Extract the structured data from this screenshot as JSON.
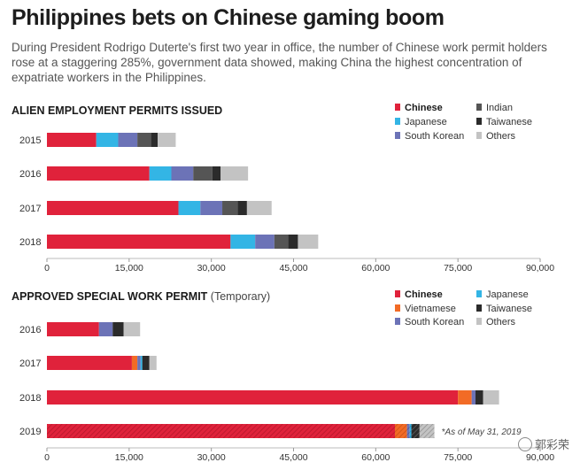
{
  "title": "Philippines bets on Chinese gaming boom",
  "subtitle": "During President Rodrigo Duterte's first two year in office, the number of Chinese work permit holders rose at a staggering 285%, government data showed, making China the highest concentration of expatriate workers in the Philippines.",
  "watermark": "郭彩荣",
  "colors": {
    "Chinese": "#e0223b",
    "Japanese": "#33b5e5",
    "South Korean": "#6c73b7",
    "Indian": "#555555",
    "Taiwanese": "#2b2b2b",
    "Others": "#c3c3c3",
    "Vietnamese": "#f26b26"
  },
  "chart_data": [
    {
      "type": "bar",
      "orientation": "horizontal",
      "stacked": true,
      "title": "ALIEN EMPLOYMENT PERMITS ISSUED",
      "subtitle": "",
      "categories": [
        "2015",
        "2016",
        "2017",
        "2018"
      ],
      "xlim": [
        0,
        90000
      ],
      "xticks": [
        "0",
        "15,000",
        "30,000",
        "45,000",
        "60,000",
        "75,000",
        "90,000"
      ],
      "xtick_values": [
        0,
        15000,
        30000,
        45000,
        60000,
        75000,
        90000
      ],
      "legend": [
        "Chinese",
        "Japanese",
        "South Korean",
        "Indian",
        "Taiwanese",
        "Others"
      ],
      "legend_bold": [
        "Chinese"
      ],
      "series": [
        {
          "name": "Chinese",
          "values": [
            9000,
            18700,
            24000,
            33500
          ]
        },
        {
          "name": "Japanese",
          "values": [
            4000,
            4000,
            4000,
            4500
          ]
        },
        {
          "name": "South Korean",
          "values": [
            3500,
            4000,
            4000,
            3500
          ]
        },
        {
          "name": "Indian",
          "values": [
            2500,
            3500,
            2800,
            2500
          ]
        },
        {
          "name": "Taiwanese",
          "values": [
            1200,
            1500,
            1700,
            1800
          ]
        },
        {
          "name": "Others",
          "values": [
            3300,
            5000,
            4500,
            3700
          ]
        }
      ]
    },
    {
      "type": "bar",
      "orientation": "horizontal",
      "stacked": true,
      "title": "APPROVED SPECIAL WORK PERMIT",
      "subtitle": "(Temporary)",
      "categories": [
        "2016",
        "2017",
        "2018",
        "2019"
      ],
      "hatched_categories": [
        "2019"
      ],
      "note": "*As of May 31, 2019",
      "xlim": [
        0,
        90000
      ],
      "xticks": [
        "0",
        "15,000",
        "30,000",
        "45,000",
        "60,000",
        "75,000",
        "90,000"
      ],
      "xtick_values": [
        0,
        15000,
        30000,
        45000,
        60000,
        75000,
        90000
      ],
      "legend": [
        "Chinese",
        "Japanese",
        "Vietnamese",
        "Taiwanese",
        "South Korean",
        "Others"
      ],
      "legend_bold": [
        "Chinese"
      ],
      "series": [
        {
          "name": "Chinese",
          "values": [
            9500,
            15500,
            75000,
            63500
          ]
        },
        {
          "name": "Vietnamese",
          "values": [
            0,
            1000,
            2500,
            2200
          ]
        },
        {
          "name": "South Korean",
          "values": [
            2500,
            600,
            700,
            500
          ]
        },
        {
          "name": "Japanese",
          "values": [
            0,
            300,
            0,
            300
          ]
        },
        {
          "name": "Taiwanese",
          "values": [
            2000,
            1300,
            1400,
            1500
          ]
        },
        {
          "name": "Others",
          "values": [
            3000,
            1300,
            2900,
            2700
          ]
        }
      ]
    }
  ]
}
